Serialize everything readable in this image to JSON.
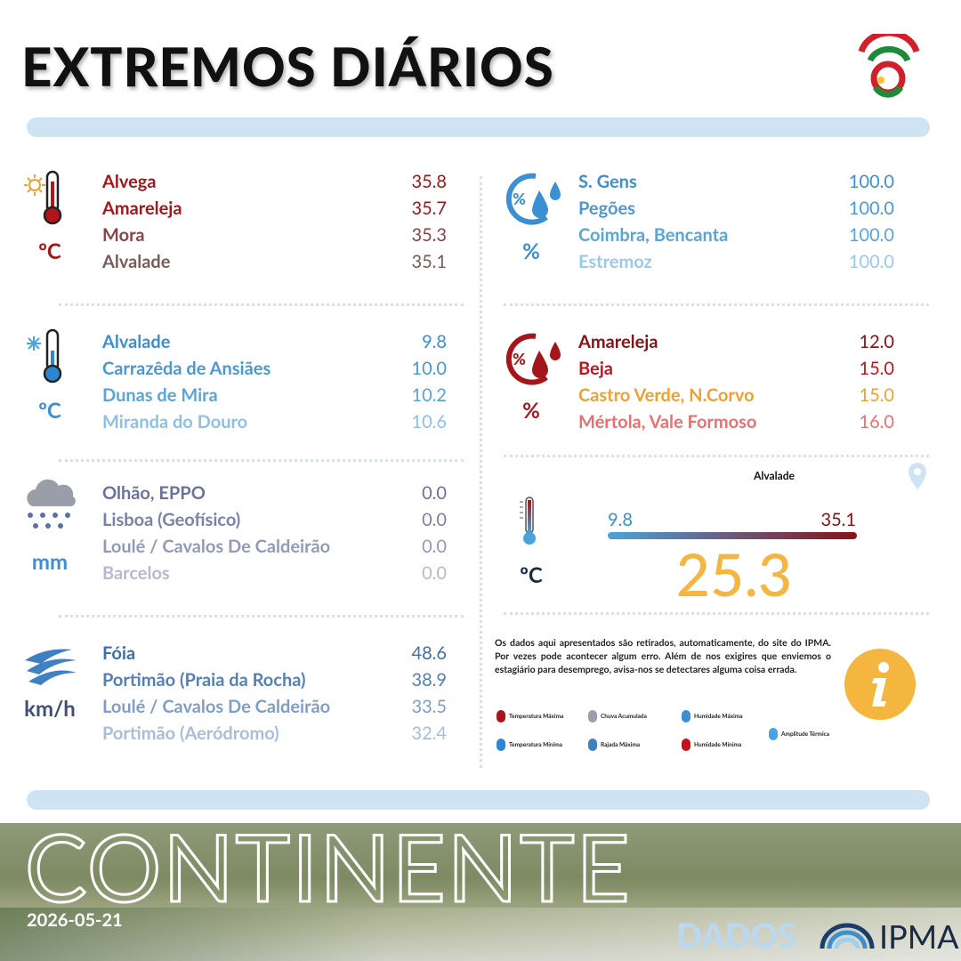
{
  "header": {
    "title": "EXTREMOS DIÁRIOS"
  },
  "sections": [
    {
      "unit": "ºC",
      "unit_color": "#a4161a",
      "colors": [
        "#a4161a",
        "#a4161a",
        "#8b4444",
        "#7a5a5a"
      ],
      "rows": [
        {
          "station": "Alvega",
          "value": "35.8"
        },
        {
          "station": "Amareleja",
          "value": "35.7"
        },
        {
          "station": "Mora",
          "value": "35.3"
        },
        {
          "station": "Alvalade",
          "value": "35.1"
        }
      ]
    },
    {
      "unit": "ºC",
      "unit_color": "#3c8fd0",
      "colors": [
        "#3c8fd0",
        "#4a98d4",
        "#5aa4d8",
        "#8ec0e4"
      ],
      "rows": [
        {
          "station": "Alvalade",
          "value": "9.8"
        },
        {
          "station": "Carrazêda de Ansiães",
          "value": "10.0"
        },
        {
          "station": "Dunas de Mira",
          "value": "10.2"
        },
        {
          "station": "Miranda do Douro",
          "value": "10.6"
        }
      ]
    },
    {
      "unit": "mm",
      "unit_color": "#3c8fd0",
      "colors": [
        "#6b7299",
        "#7c82a6",
        "#9399b8",
        "#b6bad0"
      ],
      "rows": [
        {
          "station": "Olhão, EPPO",
          "value": "0.0"
        },
        {
          "station": "Lisboa (Geofísico)",
          "value": "0.0"
        },
        {
          "station": "Loulé / Cavalos De Caldeirão",
          "value": "0.0"
        },
        {
          "station": "Barcelos",
          "value": "0.0"
        }
      ]
    },
    {
      "unit": "km/h",
      "unit_color": "#3d4f78",
      "colors": [
        "#3f6fa8",
        "#5580b4",
        "#7f9dc6",
        "#aabdd8"
      ],
      "rows": [
        {
          "station": "Fóia",
          "value": "48.6"
        },
        {
          "station": "Portimão (Praia da Rocha)",
          "value": "38.9"
        },
        {
          "station": "Loulé / Cavalos De Caldeirão",
          "value": "33.5"
        },
        {
          "station": "Portimão (Aeródromo)",
          "value": "32.4"
        }
      ]
    },
    {
      "unit": "%",
      "unit_color": "#3c8fd0",
      "colors": [
        "#3c8fd0",
        "#4a98d4",
        "#5aa4d8",
        "#9cc8e8"
      ],
      "rows": [
        {
          "station": "S. Gens",
          "value": "100.0"
        },
        {
          "station": "Pegões",
          "value": "100.0"
        },
        {
          "station": "Coimbra, Bencanta",
          "value": "100.0"
        },
        {
          "station": "Estremoz",
          "value": "100.0"
        }
      ]
    },
    {
      "unit": "%",
      "unit_color": "#a4161a",
      "colors": [
        "#8b1016",
        "#c0141b",
        "#f0a030",
        "#e87070"
      ],
      "rows": [
        {
          "station": "Amareleja",
          "value": "12.0"
        },
        {
          "station": "Beja",
          "value": "15.0"
        },
        {
          "station": "Castro Verde, N.Corvo",
          "value": "15.0"
        },
        {
          "station": "Mértola, Vale Formoso",
          "value": "16.0"
        }
      ]
    }
  ],
  "amplitude": {
    "station": "Alvalade",
    "min": "9.8",
    "max": "35.1",
    "value": "25.3",
    "unit": "ºC"
  },
  "info": {
    "text": "Os dados aqui apresentados são retirados, automaticamente,  do site do IPMA. Por vezes pode acontecer algum erro. Além de nos exigires que enviemos o estagiário para desemprego, avisa-nos se detectares alguma coisa errada."
  },
  "legend": [
    "Temperatura Máxima",
    "Chuva Acumulada",
    "Humidade Máxima",
    "Amplitude Térmica",
    "Temperatura Mínima",
    "Rajada Máxima",
    "Humidade Mínima"
  ],
  "footer": {
    "region": "CONTINENTE",
    "date": "2026-05-21",
    "brand": "DADOS",
    "logo": "IPMA"
  }
}
